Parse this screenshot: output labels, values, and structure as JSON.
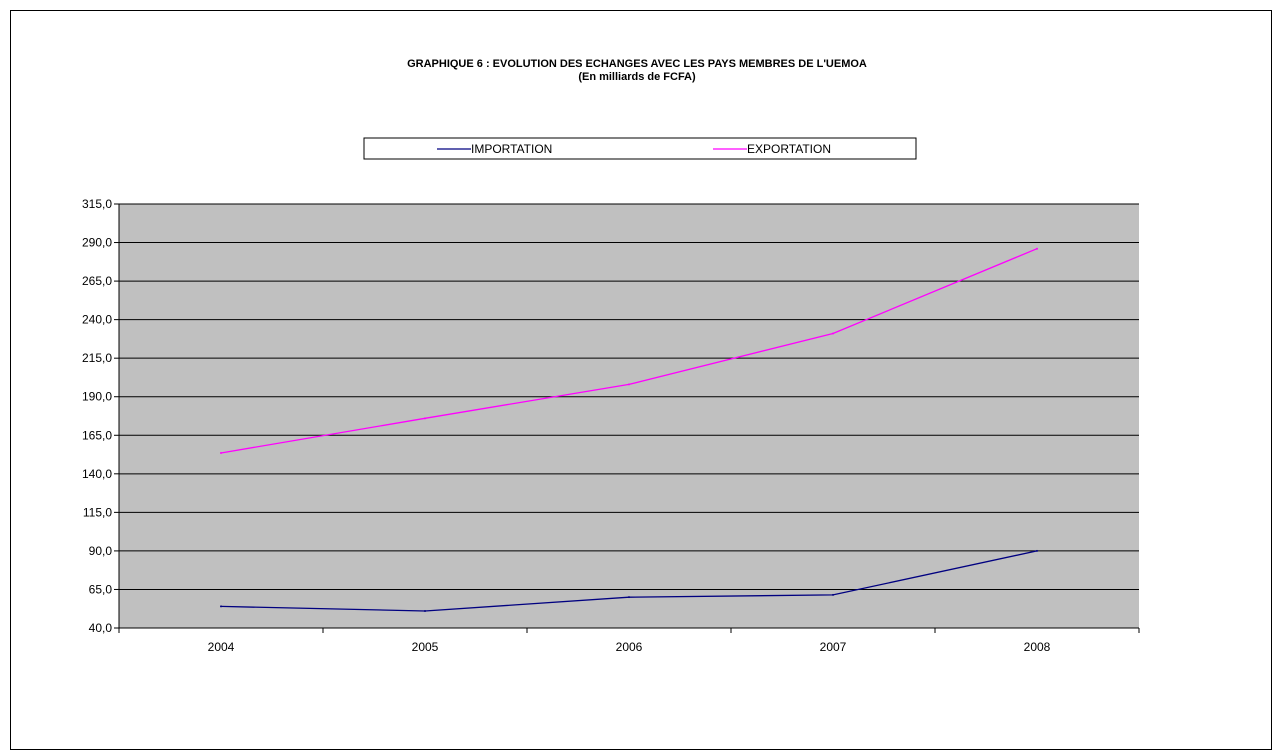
{
  "chart_data": {
    "type": "line",
    "title": "GRAPHIQUE 6 : EVOLUTION DES ECHANGES AVEC LES PAYS MEMBRES DE L'UEMOA",
    "subtitle": "(En milliards de FCFA)",
    "xlabel": "",
    "ylabel": "",
    "categories": [
      "2004",
      "2005",
      "2006",
      "2007",
      "2008"
    ],
    "ylim": [
      40,
      315
    ],
    "yticks": [
      40,
      65,
      90,
      115,
      140,
      165,
      190,
      215,
      240,
      265,
      290,
      315
    ],
    "ytick_labels": [
      "40,0",
      "65,0",
      "90,0",
      "115,0",
      "140,0",
      "165,0",
      "190,0",
      "215,0",
      "240,0",
      "265,0",
      "290,0",
      "315,0"
    ],
    "grid": true,
    "legend_position": "top",
    "plot_background": "#c0c0c0",
    "series": [
      {
        "name": "IMPORTATION",
        "color": "#000080",
        "values": [
          54,
          51,
          60,
          61.5,
          90
        ]
      },
      {
        "name": "EXPORTATION",
        "color": "#ff00ff",
        "values": [
          153.5,
          176,
          198,
          231,
          286
        ]
      }
    ]
  }
}
